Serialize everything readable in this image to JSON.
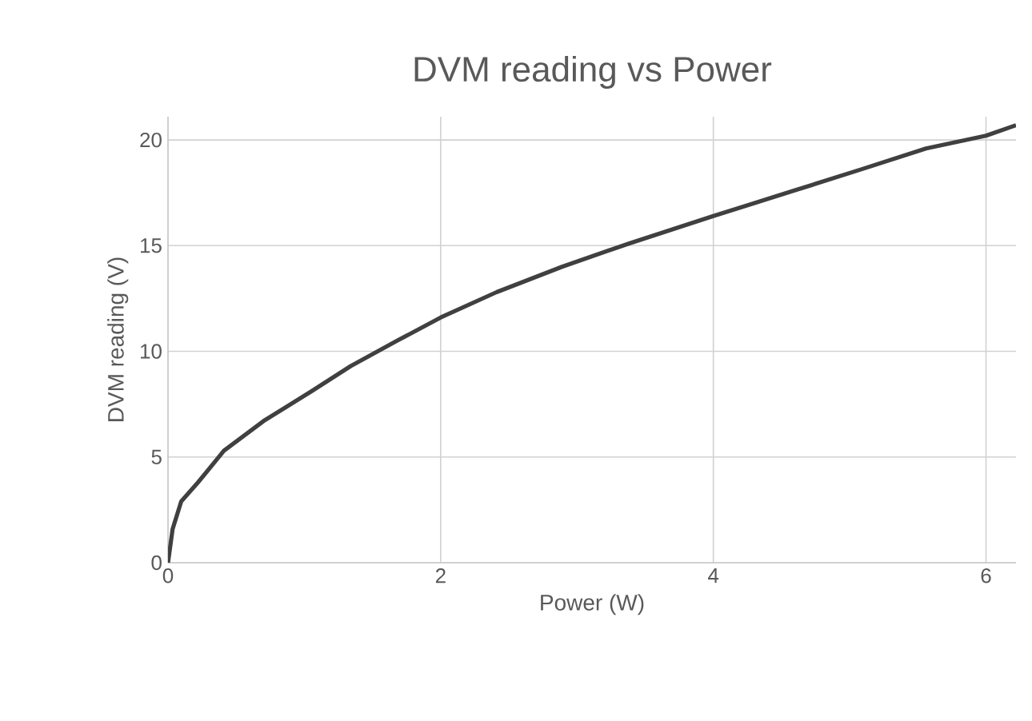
{
  "chart_data": {
    "type": "line",
    "title": "DVM reading vs Power",
    "xlabel": "Power (W)",
    "ylabel": "DVM reading (V)",
    "x": [
      0,
      0.034,
      0.097,
      0.22,
      0.41,
      0.7,
      1.05,
      1.34,
      1.68,
      2.0,
      2.41,
      2.89,
      3.38,
      4.0,
      4.59,
      5.08,
      5.56,
      6.0,
      6.22
    ],
    "series": [
      {
        "color": "#404040",
        "values": [
          0,
          1.6,
          2.9,
          3.8,
          5.3,
          6.7,
          8.1,
          9.3,
          10.5,
          11.6,
          12.8,
          14.0,
          15.1,
          16.4,
          17.6,
          18.6,
          19.6,
          20.2,
          20.7
        ]
      }
    ],
    "xlim": [
      0,
      6.22
    ],
    "ylim": [
      0,
      21.1
    ],
    "xticks": [
      0,
      2,
      4,
      6
    ],
    "yticks": [
      0,
      5,
      10,
      15,
      20
    ],
    "grid": true,
    "marker": "none",
    "line_style": "solid"
  }
}
